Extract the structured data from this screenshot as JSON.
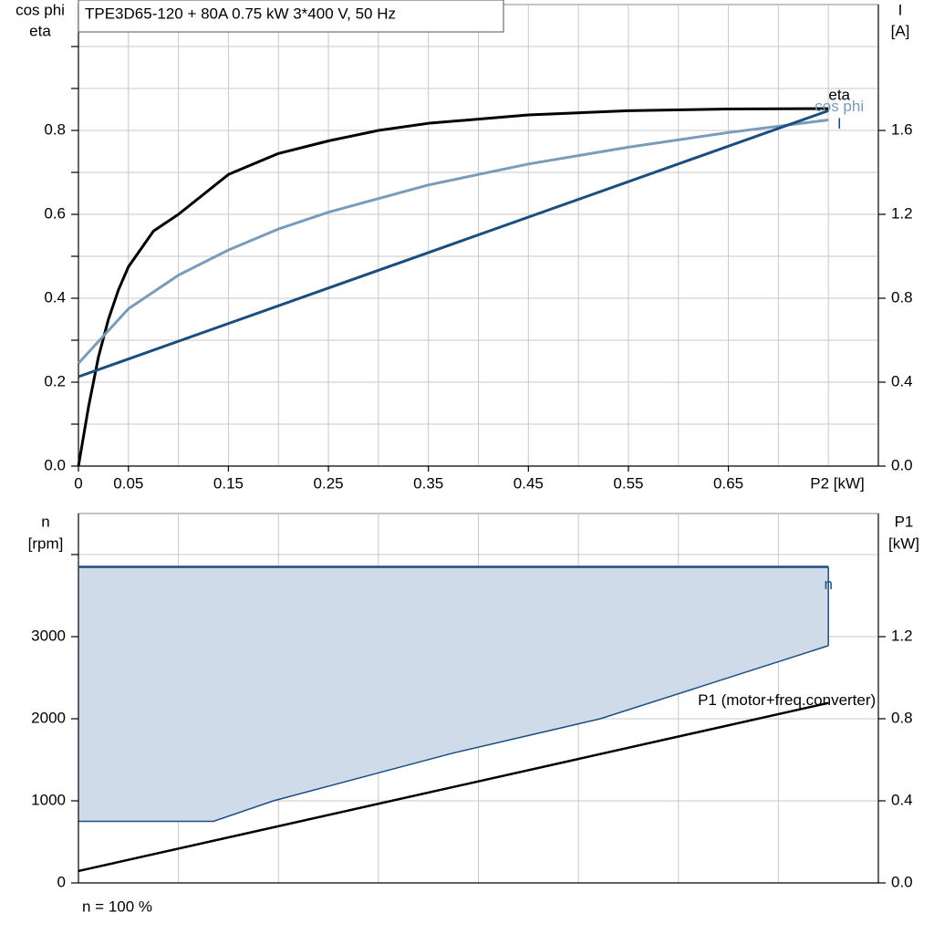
{
  "chart_data": [
    {
      "type": "line",
      "title": "TPE3D65-120 + 80A   0.75 kW   3*400 V, 50 Hz",
      "ylabel": [
        "cos phi",
        "eta"
      ],
      "y2label": [
        "I",
        "[A]"
      ],
      "xlabel": "P2 [kW]",
      "xlim": [
        0,
        0.8
      ],
      "xticks": [
        0,
        0.05,
        0.15,
        0.25,
        0.35,
        0.45,
        0.55,
        0.65
      ],
      "xgrid": [
        0.1,
        0.2,
        0.3,
        0.4,
        0.5,
        0.6,
        0.7,
        0.75
      ],
      "ylim": [
        0,
        1.1
      ],
      "yticks": [
        {
          "value": 0,
          "label": "0.0"
        },
        0.2,
        0.4,
        0.6,
        0.8
      ],
      "ygrid": [
        0.1,
        0.3,
        0.5,
        0.7,
        0.9,
        1.0
      ],
      "y2lim": [
        0,
        2.2
      ],
      "y2ticks": [
        {
          "value": 0,
          "label": "0.0"
        },
        0.4,
        0.8,
        1.2,
        1.6
      ],
      "grid": true,
      "series": [
        {
          "name": "eta",
          "color": "#000000",
          "x": [
            0,
            0.01,
            0.02,
            0.03,
            0.04,
            0.05,
            0.075,
            0.1,
            0.15,
            0.2,
            0.25,
            0.3,
            0.35,
            0.45,
            0.55,
            0.65,
            0.75
          ],
          "values": [
            0,
            0.14,
            0.26,
            0.35,
            0.42,
            0.475,
            0.56,
            0.6,
            0.695,
            0.745,
            0.775,
            0.8,
            0.817,
            0.837,
            0.847,
            0.851,
            0.852
          ]
        },
        {
          "name": "cos phi",
          "color": "#7a9cbb",
          "x": [
            0,
            0.05,
            0.1,
            0.15,
            0.2,
            0.25,
            0.35,
            0.45,
            0.55,
            0.65,
            0.75
          ],
          "values": [
            0.245,
            0.375,
            0.455,
            0.515,
            0.565,
            0.605,
            0.67,
            0.72,
            0.76,
            0.795,
            0.825
          ]
        },
        {
          "name": "I",
          "color": "#1a4d80",
          "axis": "y2",
          "x": [
            0,
            0.75
          ],
          "values": [
            0.426,
            1.694
          ]
        }
      ]
    },
    {
      "type": "area",
      "ylabel": [
        "n",
        "[rpm]"
      ],
      "y2label": [
        "P1",
        "[kW]"
      ],
      "annotation": "n = 100 %",
      "xlim": [
        0,
        0.8
      ],
      "xgrid": [
        0.1,
        0.2,
        0.3,
        0.4,
        0.5,
        0.6,
        0.7
      ],
      "ylim": [
        0,
        4500
      ],
      "yticks": [
        0,
        1000,
        2000,
        3000
      ],
      "ygrid": [
        4000
      ],
      "y2lim": [
        0,
        1.8
      ],
      "y2ticks": [
        {
          "value": 0,
          "label": "0.0"
        },
        0.4,
        0.8,
        1.2
      ],
      "grid": true,
      "fill_color": "#cfdbe8",
      "fill_lower": {
        "x": [
          0,
          0.135,
          0.195,
          0.374,
          0.522,
          0.75
        ],
        "values": [
          750,
          750,
          1000,
          1580,
          2000,
          2890
        ]
      },
      "series": [
        {
          "name": "n",
          "color": "#1a4d80",
          "x": [
            0,
            0.75
          ],
          "values": [
            3850,
            3850
          ]
        },
        {
          "name": "P1 (motor+freq.converter)",
          "color": "#000000",
          "axis": "y2",
          "x": [
            0,
            0.75
          ],
          "values": [
            0.058,
            0.877
          ]
        }
      ]
    }
  ]
}
